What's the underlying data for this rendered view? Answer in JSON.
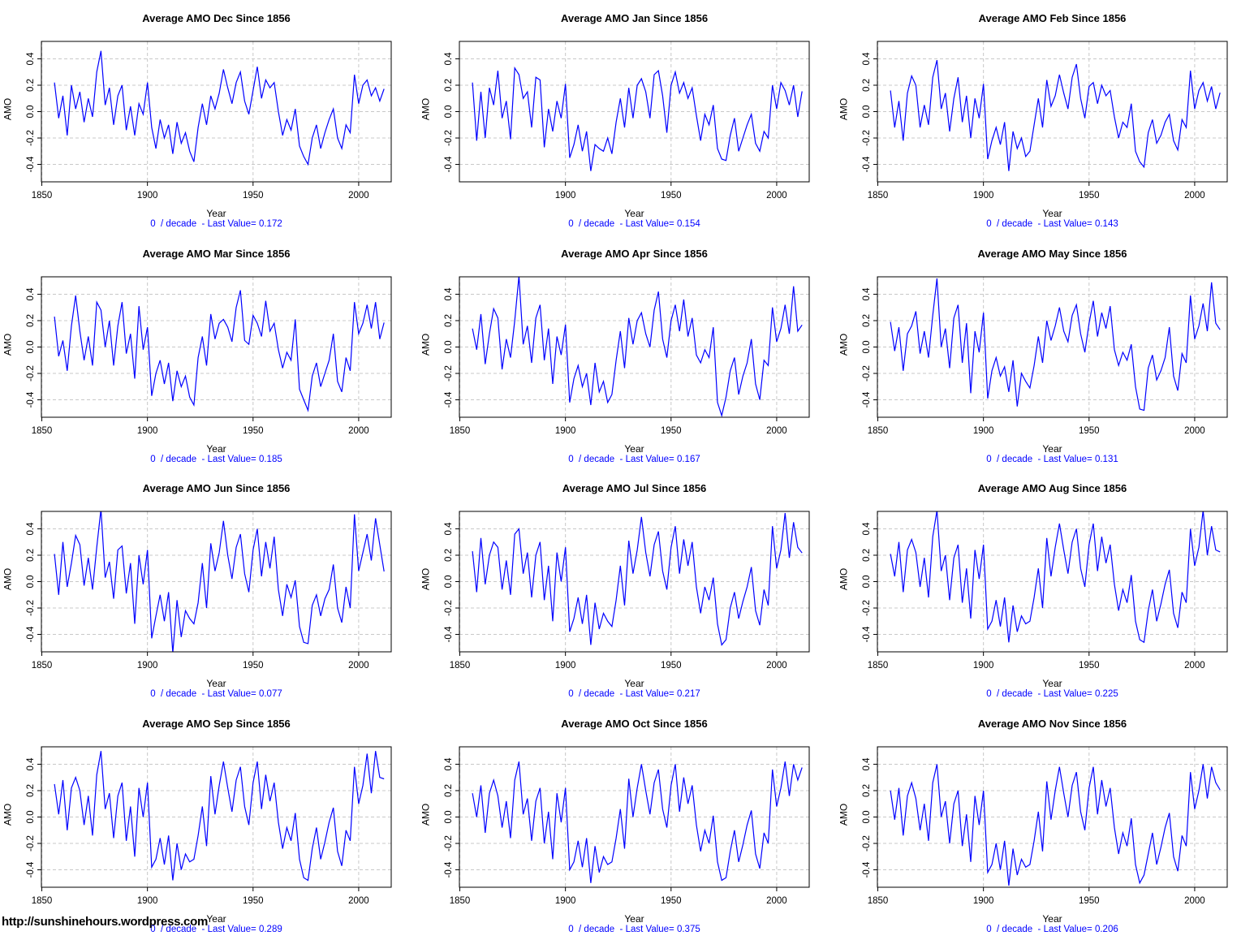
{
  "page": {
    "url_text": "http://sunshinehours.wordpress.com",
    "background": "#ffffff"
  },
  "colors": {
    "line": "#0000ff",
    "grid": "#c8c8c8",
    "frame": "#000000",
    "tick_text": "#000000",
    "footer_text": "#0000ff",
    "title_text": "#000000"
  },
  "axes": {
    "x_label": "Year",
    "y_label": "AMO",
    "y_ticks": [
      "-0.4",
      "-0.2",
      "0.0",
      "0.2",
      "0.4"
    ],
    "y_tick_values": [
      -0.4,
      -0.2,
      0.0,
      0.2,
      0.4
    ],
    "xlim": [
      1849.8,
      2015.4
    ],
    "ylim": [
      -0.532,
      0.532
    ],
    "grid": true,
    "grid_style": "dashed"
  },
  "chart_data": {
    "type": "line",
    "x_start": 1856,
    "x_step": 2,
    "charts": [
      {
        "title": "Average AMO Dec Since 1856",
        "footer": "0  / decade  - Last Value= 0.172",
        "last_value": 0.172,
        "x_ticks": [
          1850,
          1900,
          1950,
          2000
        ],
        "values": [
          0.22,
          -0.05,
          0.12,
          -0.18,
          0.2,
          0.02,
          0.15,
          -0.08,
          0.1,
          -0.04,
          0.3,
          0.46,
          0.05,
          0.18,
          -0.1,
          0.12,
          0.2,
          -0.14,
          0.04,
          -0.18,
          0.06,
          -0.02,
          0.22,
          -0.12,
          -0.28,
          -0.06,
          -0.2,
          -0.1,
          -0.32,
          -0.08,
          -0.24,
          -0.16,
          -0.3,
          -0.38,
          -0.12,
          0.06,
          -0.1,
          0.12,
          0.02,
          0.14,
          0.32,
          0.18,
          0.06,
          0.22,
          0.3,
          0.08,
          -0.02,
          0.16,
          0.34,
          0.1,
          0.24,
          0.18,
          0.22,
          0.0,
          -0.18,
          -0.06,
          -0.14,
          0.02,
          -0.26,
          -0.34,
          -0.4,
          -0.2,
          -0.1,
          -0.28,
          -0.16,
          -0.06,
          0.02,
          -0.2,
          -0.28,
          -0.1,
          -0.16,
          0.28,
          0.06,
          0.2,
          0.24,
          0.12,
          0.18,
          0.08,
          0.172
        ]
      },
      {
        "title": "Average AMO Jan Since 1856",
        "footer": "0  / decade  - Last Value= 0.154",
        "last_value": 0.154,
        "x_ticks": [
          1900,
          1950,
          2000
        ],
        "values": [
          0.22,
          -0.22,
          0.15,
          -0.2,
          0.18,
          0.05,
          0.31,
          -0.05,
          0.08,
          -0.21,
          0.33,
          0.28,
          0.1,
          0.15,
          -0.12,
          0.26,
          0.24,
          -0.27,
          0.02,
          -0.15,
          0.08,
          -0.05,
          0.21,
          -0.35,
          -0.25,
          -0.1,
          -0.3,
          -0.15,
          -0.45,
          -0.25,
          -0.28,
          -0.3,
          -0.2,
          -0.32,
          -0.08,
          0.1,
          -0.12,
          0.18,
          -0.05,
          0.2,
          0.25,
          0.15,
          -0.05,
          0.28,
          0.31,
          0.12,
          -0.16,
          0.2,
          0.3,
          0.14,
          0.22,
          0.1,
          0.18,
          -0.03,
          -0.22,
          -0.02,
          -0.1,
          0.05,
          -0.28,
          -0.36,
          -0.37,
          -0.18,
          -0.05,
          -0.3,
          -0.2,
          -0.1,
          -0.02,
          -0.24,
          -0.3,
          -0.15,
          -0.2,
          0.2,
          0.02,
          0.22,
          0.16,
          0.05,
          0.2,
          -0.04,
          0.154
        ]
      },
      {
        "title": "Average AMO Feb Since 1856",
        "footer": "0  / decade  - Last Value= 0.143",
        "last_value": 0.143,
        "x_ticks": [
          1850,
          1900,
          1950,
          2000
        ],
        "values": [
          0.16,
          -0.12,
          0.08,
          -0.22,
          0.14,
          0.27,
          0.2,
          -0.12,
          0.05,
          -0.1,
          0.26,
          0.39,
          0.02,
          0.14,
          -0.15,
          0.1,
          0.26,
          -0.08,
          0.12,
          -0.2,
          0.1,
          -0.05,
          0.21,
          -0.36,
          -0.22,
          -0.12,
          -0.25,
          -0.08,
          -0.45,
          -0.15,
          -0.28,
          -0.2,
          -0.34,
          -0.3,
          -0.1,
          0.1,
          -0.12,
          0.24,
          0.04,
          0.12,
          0.28,
          0.14,
          0.02,
          0.26,
          0.36,
          0.1,
          -0.05,
          0.19,
          0.22,
          0.06,
          0.2,
          0.12,
          0.16,
          -0.04,
          -0.2,
          -0.08,
          -0.12,
          0.06,
          -0.3,
          -0.38,
          -0.42,
          -0.16,
          -0.06,
          -0.24,
          -0.18,
          -0.08,
          -0.02,
          -0.22,
          -0.29,
          -0.06,
          -0.12,
          0.31,
          0.02,
          0.16,
          0.22,
          0.08,
          0.19,
          0.02,
          0.143
        ]
      },
      {
        "title": "Average AMO Mar Since 1856",
        "footer": "0  / decade  - Last Value= 0.185",
        "last_value": 0.185,
        "x_ticks": [
          1850,
          1900,
          1950,
          2000
        ],
        "values": [
          0.23,
          -0.07,
          0.05,
          -0.18,
          0.16,
          0.39,
          0.12,
          -0.1,
          0.08,
          -0.14,
          0.34,
          0.28,
          0.0,
          0.2,
          -0.14,
          0.16,
          0.34,
          -0.05,
          0.1,
          -0.24,
          0.31,
          -0.02,
          0.15,
          -0.37,
          -0.2,
          -0.1,
          -0.28,
          -0.12,
          -0.41,
          -0.18,
          -0.3,
          -0.22,
          -0.38,
          -0.44,
          -0.08,
          0.08,
          -0.14,
          0.25,
          0.06,
          0.18,
          0.21,
          0.15,
          0.04,
          0.3,
          0.43,
          0.05,
          0.02,
          0.24,
          0.18,
          0.08,
          0.35,
          0.12,
          0.18,
          -0.02,
          -0.16,
          -0.04,
          -0.1,
          0.21,
          -0.32,
          -0.4,
          -0.48,
          -0.22,
          -0.12,
          -0.3,
          -0.2,
          -0.1,
          0.1,
          -0.26,
          -0.34,
          -0.08,
          -0.18,
          0.34,
          0.1,
          0.18,
          0.32,
          0.14,
          0.34,
          0.06,
          0.185
        ]
      },
      {
        "title": "Average AMO Apr Since 1856",
        "footer": "0  / decade  - Last Value= 0.167",
        "last_value": 0.167,
        "x_ticks": [
          1850,
          1900,
          1950,
          2000
        ],
        "values": [
          0.14,
          -0.02,
          0.25,
          -0.13,
          0.1,
          0.29,
          0.22,
          -0.17,
          0.06,
          -0.08,
          0.2,
          0.54,
          0.02,
          0.16,
          -0.12,
          0.22,
          0.32,
          -0.1,
          0.14,
          -0.28,
          0.08,
          -0.06,
          0.17,
          -0.42,
          -0.24,
          -0.14,
          -0.3,
          -0.2,
          -0.44,
          -0.12,
          -0.34,
          -0.26,
          -0.42,
          -0.36,
          -0.1,
          0.12,
          -0.16,
          0.22,
          0.02,
          0.2,
          0.26,
          0.1,
          0.0,
          0.28,
          0.42,
          0.06,
          -0.08,
          0.2,
          0.32,
          0.12,
          0.36,
          0.08,
          0.22,
          -0.06,
          -0.12,
          -0.02,
          -0.08,
          0.15,
          -0.42,
          -0.52,
          -0.38,
          -0.18,
          -0.08,
          -0.36,
          -0.22,
          -0.12,
          0.06,
          -0.28,
          -0.4,
          -0.1,
          -0.14,
          0.3,
          0.04,
          0.14,
          0.32,
          0.1,
          0.46,
          0.12,
          0.167
        ]
      },
      {
        "title": "Average AMO May Since 1856",
        "footer": "0  / decade  - Last Value= 0.131",
        "last_value": 0.131,
        "x_ticks": [
          1850,
          1900,
          1950,
          2000
        ],
        "values": [
          0.19,
          -0.03,
          0.15,
          -0.18,
          0.1,
          0.16,
          0.27,
          -0.05,
          0.12,
          -0.08,
          0.24,
          0.52,
          0.0,
          0.14,
          -0.16,
          0.22,
          0.32,
          -0.12,
          0.18,
          -0.35,
          0.12,
          -0.04,
          0.26,
          -0.39,
          -0.18,
          -0.08,
          -0.22,
          -0.15,
          -0.34,
          -0.1,
          -0.45,
          -0.2,
          -0.26,
          -0.31,
          -0.14,
          0.08,
          -0.12,
          0.2,
          0.05,
          0.16,
          0.3,
          0.12,
          0.04,
          0.24,
          0.32,
          0.1,
          -0.04,
          0.18,
          0.35,
          0.08,
          0.26,
          0.14,
          0.31,
          -0.02,
          -0.14,
          -0.04,
          -0.1,
          0.02,
          -0.3,
          -0.47,
          -0.48,
          -0.16,
          -0.06,
          -0.25,
          -0.18,
          -0.08,
          0.15,
          -0.22,
          -0.33,
          -0.05,
          -0.12,
          0.39,
          0.06,
          0.16,
          0.33,
          0.12,
          0.49,
          0.18,
          0.131
        ]
      },
      {
        "title": "Average AMO Jun Since 1856",
        "footer": "0  / decade  - Last Value= 0.077",
        "last_value": 0.077,
        "x_ticks": [
          1850,
          1900,
          1950,
          2000
        ],
        "values": [
          0.21,
          -0.1,
          0.3,
          -0.04,
          0.14,
          0.35,
          0.28,
          -0.03,
          0.18,
          -0.06,
          0.26,
          0.55,
          0.03,
          0.15,
          -0.13,
          0.24,
          0.27,
          -0.09,
          0.14,
          -0.32,
          0.2,
          -0.02,
          0.24,
          -0.43,
          -0.26,
          -0.1,
          -0.3,
          -0.08,
          -0.54,
          -0.14,
          -0.42,
          -0.22,
          -0.28,
          -0.32,
          -0.16,
          0.14,
          -0.2,
          0.29,
          0.08,
          0.22,
          0.46,
          0.2,
          0.02,
          0.26,
          0.36,
          0.06,
          -0.08,
          0.24,
          0.4,
          0.04,
          0.3,
          0.1,
          0.34,
          -0.06,
          -0.26,
          -0.02,
          -0.12,
          0.01,
          -0.34,
          -0.46,
          -0.47,
          -0.18,
          -0.1,
          -0.26,
          -0.13,
          -0.06,
          0.13,
          -0.2,
          -0.31,
          -0.04,
          -0.2,
          0.51,
          0.08,
          0.22,
          0.36,
          0.16,
          0.48,
          0.28,
          0.077
        ]
      },
      {
        "title": "Average AMO Jul Since 1856",
        "footer": "0  / decade  - Last Value= 0.217",
        "last_value": 0.217,
        "x_ticks": [
          1850,
          1900,
          1950,
          2000
        ],
        "values": [
          0.23,
          -0.08,
          0.33,
          -0.02,
          0.2,
          0.3,
          0.26,
          -0.06,
          0.16,
          -0.1,
          0.36,
          0.4,
          0.06,
          0.22,
          -0.12,
          0.2,
          0.3,
          -0.14,
          0.12,
          -0.3,
          0.22,
          0.0,
          0.26,
          -0.38,
          -0.28,
          -0.12,
          -0.32,
          -0.1,
          -0.48,
          -0.16,
          -0.36,
          -0.24,
          -0.3,
          -0.34,
          -0.14,
          0.12,
          -0.18,
          0.31,
          0.06,
          0.24,
          0.49,
          0.22,
          0.04,
          0.28,
          0.38,
          0.08,
          -0.06,
          0.26,
          0.42,
          0.06,
          0.32,
          0.12,
          0.3,
          -0.04,
          -0.24,
          -0.04,
          -0.14,
          0.03,
          -0.32,
          -0.48,
          -0.44,
          -0.2,
          -0.08,
          -0.28,
          -0.15,
          -0.04,
          0.11,
          -0.22,
          -0.33,
          -0.06,
          -0.18,
          0.42,
          0.1,
          0.24,
          0.52,
          0.18,
          0.45,
          0.26,
          0.217
        ]
      },
      {
        "title": "Average AMO Aug Since 1856",
        "footer": "0  / decade  - Last Value= 0.225",
        "last_value": 0.225,
        "x_ticks": [
          1850,
          1900,
          1950,
          2000
        ],
        "values": [
          0.21,
          0.04,
          0.3,
          -0.08,
          0.24,
          0.32,
          0.22,
          -0.04,
          0.18,
          -0.12,
          0.34,
          0.54,
          0.08,
          0.2,
          -0.14,
          0.18,
          0.28,
          -0.16,
          0.1,
          -0.28,
          0.24,
          0.02,
          0.28,
          -0.36,
          -0.3,
          -0.14,
          -0.34,
          -0.12,
          -0.46,
          -0.18,
          -0.38,
          -0.26,
          -0.32,
          -0.3,
          -0.12,
          0.1,
          -0.2,
          0.33,
          0.04,
          0.26,
          0.44,
          0.24,
          0.06,
          0.3,
          0.4,
          0.1,
          -0.04,
          0.28,
          0.44,
          0.08,
          0.34,
          0.14,
          0.28,
          -0.02,
          -0.22,
          -0.06,
          -0.16,
          0.05,
          -0.3,
          -0.44,
          -0.46,
          -0.22,
          -0.06,
          -0.3,
          -0.17,
          -0.02,
          0.09,
          -0.24,
          -0.35,
          -0.08,
          -0.16,
          0.4,
          0.12,
          0.26,
          0.54,
          0.2,
          0.42,
          0.24,
          0.225
        ]
      },
      {
        "title": "Average AMO Sep Since 1856",
        "footer": "0  / decade  - Last Value= 0.289",
        "last_value": 0.289,
        "x_ticks": [
          1850,
          1900,
          1950,
          2000
        ],
        "values": [
          0.25,
          0.02,
          0.28,
          -0.1,
          0.22,
          0.3,
          0.2,
          -0.06,
          0.16,
          -0.14,
          0.32,
          0.5,
          0.06,
          0.18,
          -0.16,
          0.16,
          0.26,
          -0.18,
          0.08,
          -0.3,
          0.22,
          0.0,
          0.26,
          -0.38,
          -0.32,
          -0.16,
          -0.36,
          -0.14,
          -0.48,
          -0.2,
          -0.4,
          -0.28,
          -0.34,
          -0.32,
          -0.14,
          0.08,
          -0.22,
          0.31,
          0.02,
          0.24,
          0.42,
          0.22,
          0.04,
          0.28,
          0.38,
          0.08,
          -0.06,
          0.26,
          0.42,
          0.06,
          0.32,
          0.12,
          0.26,
          -0.04,
          -0.24,
          -0.08,
          -0.18,
          0.03,
          -0.32,
          -0.46,
          -0.48,
          -0.24,
          -0.08,
          -0.32,
          -0.19,
          -0.04,
          0.07,
          -0.26,
          -0.37,
          -0.1,
          -0.18,
          0.38,
          0.1,
          0.24,
          0.48,
          0.18,
          0.5,
          0.3,
          0.289
        ]
      },
      {
        "title": "Average AMO Oct Since 1856",
        "footer": "0  / decade  - Last Value= 0.375",
        "last_value": 0.375,
        "x_ticks": [
          1850,
          1900,
          1950,
          2000
        ],
        "values": [
          0.18,
          0.0,
          0.24,
          -0.12,
          0.18,
          0.28,
          0.16,
          -0.08,
          0.12,
          -0.16,
          0.28,
          0.42,
          0.02,
          0.14,
          -0.18,
          0.12,
          0.22,
          -0.2,
          0.04,
          -0.32,
          0.18,
          -0.04,
          0.22,
          -0.4,
          -0.34,
          -0.18,
          -0.38,
          -0.16,
          -0.5,
          -0.22,
          -0.42,
          -0.3,
          -0.36,
          -0.34,
          -0.16,
          0.06,
          -0.24,
          0.29,
          0.0,
          0.22,
          0.4,
          0.2,
          0.02,
          0.26,
          0.36,
          0.06,
          -0.08,
          0.24,
          0.4,
          0.04,
          0.3,
          0.1,
          0.24,
          -0.06,
          -0.26,
          -0.1,
          -0.2,
          0.01,
          -0.34,
          -0.48,
          -0.46,
          -0.26,
          -0.1,
          -0.34,
          -0.21,
          -0.06,
          0.05,
          -0.28,
          -0.39,
          -0.12,
          -0.2,
          0.36,
          0.08,
          0.22,
          0.42,
          0.16,
          0.4,
          0.28,
          0.375
        ]
      },
      {
        "title": "Average AMO Nov Since 1856",
        "footer": "0  / decade  - Last Value= 0.206",
        "last_value": 0.206,
        "x_ticks": [
          1850,
          1900,
          1950,
          2000
        ],
        "values": [
          0.2,
          -0.02,
          0.22,
          -0.14,
          0.16,
          0.26,
          0.14,
          -0.1,
          0.1,
          -0.18,
          0.26,
          0.4,
          0.0,
          0.12,
          -0.2,
          0.1,
          0.2,
          -0.22,
          0.02,
          -0.34,
          0.16,
          -0.06,
          0.2,
          -0.42,
          -0.36,
          -0.2,
          -0.4,
          -0.18,
          -0.52,
          -0.24,
          -0.44,
          -0.32,
          -0.38,
          -0.36,
          -0.18,
          0.04,
          -0.26,
          0.27,
          -0.02,
          0.2,
          0.38,
          0.18,
          0.0,
          0.24,
          0.34,
          0.04,
          -0.1,
          0.22,
          0.38,
          0.02,
          0.28,
          0.08,
          0.22,
          -0.08,
          -0.28,
          -0.12,
          -0.22,
          -0.01,
          -0.36,
          -0.5,
          -0.44,
          -0.28,
          -0.12,
          -0.36,
          -0.23,
          -0.08,
          0.03,
          -0.3,
          -0.41,
          -0.14,
          -0.22,
          0.34,
          0.06,
          0.2,
          0.4,
          0.14,
          0.38,
          0.26,
          0.206
        ]
      }
    ]
  }
}
